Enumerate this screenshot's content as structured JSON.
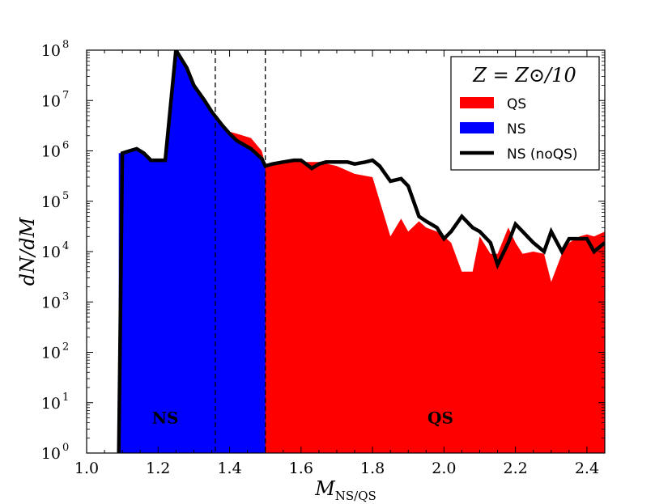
{
  "chart_data": {
    "type": "area",
    "xlabel": "M",
    "xlabel_sub": "NS/QS",
    "ylabel": "dN/dM",
    "xlim": [
      1.0,
      2.45
    ],
    "ylim": [
      1,
      100000000
    ],
    "yscale": "log",
    "x_ticks": [
      "1.0",
      "1.2",
      "1.4",
      "1.6",
      "1.8",
      "2.0",
      "2.2",
      "2.4"
    ],
    "x_tick_values": [
      1.0,
      1.2,
      1.4,
      1.6,
      1.8,
      2.0,
      2.2,
      2.4
    ],
    "y_tick_exponents": [
      0,
      1,
      2,
      3,
      4,
      5,
      6,
      7,
      8
    ],
    "y_tick_base": "10",
    "vlines": [
      1.36,
      1.5
    ],
    "legend": {
      "position": "top-right",
      "title": "Z = Z⊙/10",
      "entries": [
        "QS",
        "NS",
        "NS (noQS)"
      ]
    },
    "region_labels": [
      {
        "text": "NS",
        "x": 1.22,
        "y": 5
      },
      {
        "text": "QS",
        "x": 1.99,
        "y": 5
      }
    ],
    "series": [
      {
        "name": "QS",
        "color": "#ff0000",
        "kind": "fill",
        "x": [
          1.35,
          1.38,
          1.4,
          1.42,
          1.46,
          1.49,
          1.5,
          1.55,
          1.6,
          1.65,
          1.7,
          1.75,
          1.8,
          1.83,
          1.85,
          1.88,
          1.9,
          1.93,
          1.95,
          1.98,
          2.0,
          2.02,
          2.05,
          2.08,
          2.1,
          2.13,
          2.15,
          2.18,
          2.2,
          2.22,
          2.25,
          2.28,
          2.3,
          2.33,
          2.35,
          2.38,
          2.4,
          2.42,
          2.45
        ],
        "y": [
          6000000,
          3200000,
          2400000,
          2200000,
          1800000,
          1000000,
          550000,
          650000,
          600000,
          600000,
          500000,
          350000,
          300000,
          60000,
          20000,
          45000,
          25000,
          40000,
          30000,
          25000,
          20000,
          15000,
          4000,
          4000,
          20000,
          9000,
          9000,
          30000,
          15000,
          9000,
          10000,
          9000,
          2500,
          9000,
          15000,
          20000,
          22000,
          20000,
          25000
        ]
      },
      {
        "name": "NS",
        "color": "#0000ff",
        "kind": "fill",
        "x": [
          1.09,
          1.1,
          1.12,
          1.14,
          1.16,
          1.18,
          1.2,
          1.22,
          1.25,
          1.28,
          1.3,
          1.33,
          1.35,
          1.38,
          1.4,
          1.42,
          1.46,
          1.49,
          1.5
        ],
        "y": [
          900000,
          900000,
          1000000,
          1100000,
          900000,
          650000,
          650000,
          650000,
          100000000,
          45000000,
          20000000,
          10000000,
          6000000,
          3200000,
          2200000,
          1600000,
          1100000,
          700000,
          550000
        ]
      },
      {
        "name": "NS (noQS)",
        "color": "#000000",
        "kind": "line",
        "x": [
          1.09,
          1.1,
          1.12,
          1.14,
          1.16,
          1.18,
          1.2,
          1.22,
          1.25,
          1.28,
          1.3,
          1.33,
          1.35,
          1.38,
          1.4,
          1.42,
          1.46,
          1.49,
          1.5,
          1.52,
          1.55,
          1.58,
          1.6,
          1.63,
          1.65,
          1.67,
          1.7,
          1.73,
          1.75,
          1.78,
          1.8,
          1.82,
          1.85,
          1.88,
          1.9,
          1.93,
          1.95,
          1.98,
          2.0,
          2.02,
          2.05,
          2.08,
          2.1,
          2.13,
          2.15,
          2.18,
          2.2,
          2.22,
          2.25,
          2.28,
          2.3,
          2.33,
          2.35,
          2.38,
          2.4,
          2.42,
          2.45
        ],
        "y": [
          1,
          900000,
          1000000,
          1100000,
          900000,
          650000,
          650000,
          650000,
          100000000,
          45000000,
          20000000,
          10000000,
          6000000,
          3200000,
          2200000,
          1600000,
          1100000,
          700000,
          500000,
          550000,
          600000,
          650000,
          650000,
          450000,
          550000,
          600000,
          600000,
          600000,
          550000,
          600000,
          650000,
          500000,
          250000,
          280000,
          200000,
          50000,
          40000,
          30000,
          18000,
          25000,
          50000,
          30000,
          25000,
          15000,
          5500,
          15000,
          35000,
          25000,
          15000,
          10000,
          25000,
          10000,
          18000,
          18000,
          18000,
          10000,
          15000
        ]
      }
    ]
  }
}
